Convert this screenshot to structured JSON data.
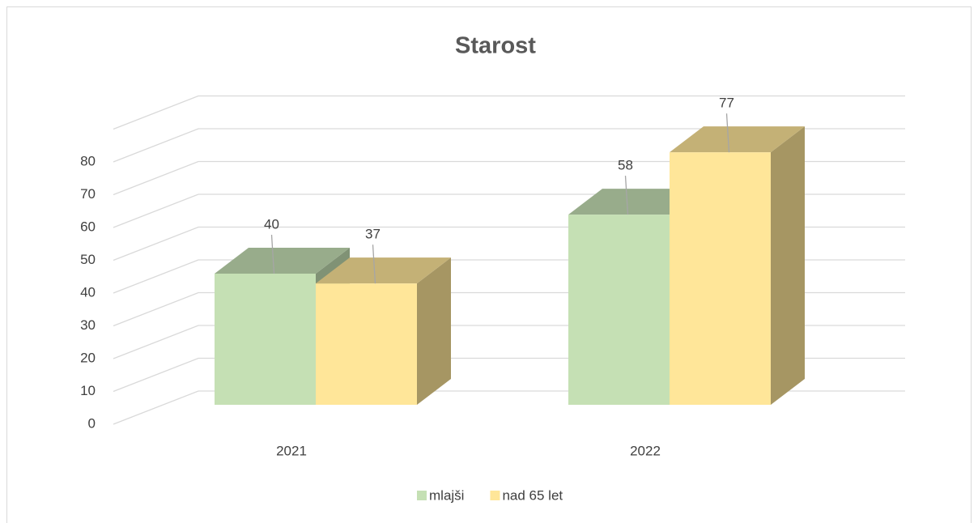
{
  "chart_data": {
    "type": "bar3d",
    "title": "Starost",
    "categories": [
      "2021",
      "2022"
    ],
    "series": [
      {
        "name": "mlajši",
        "color": "#c5e0b4",
        "values": [
          40,
          58
        ]
      },
      {
        "name": "nad 65 let",
        "color": "#ffe699",
        "values": [
          37,
          77
        ]
      }
    ],
    "ylim": [
      0,
      90
    ],
    "yticks": [
      0,
      10,
      20,
      30,
      40,
      50,
      60,
      70,
      80
    ],
    "grid": true,
    "legend": "bottom"
  }
}
